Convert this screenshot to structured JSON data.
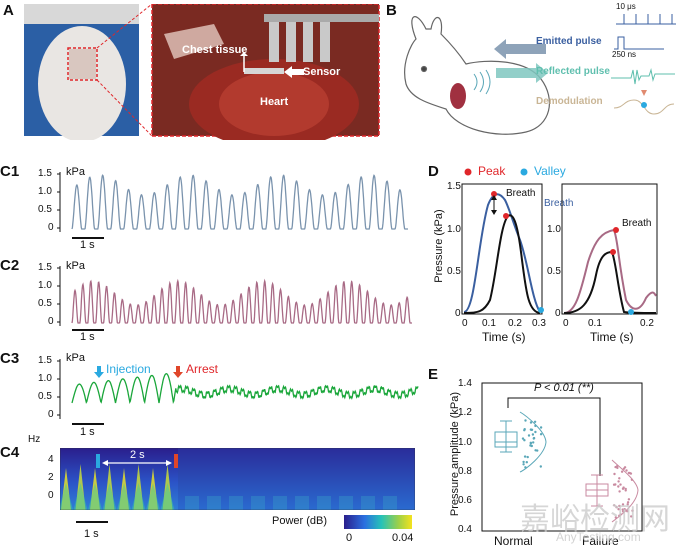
{
  "panels": {
    "A": {
      "label": "A",
      "chest_tissue": "Chest tissue",
      "sensor": "Sensor",
      "heart": "Heart"
    },
    "B": {
      "label": "B",
      "emitted": "Emitted pulse",
      "reflected": "Reflected pulse",
      "demodulation": "Demodulation",
      "t1": "10 μs",
      "t2": "250 ns"
    },
    "C1": {
      "label": "C1",
      "unit": "kPa",
      "yticks": [
        "1.5",
        "1.0",
        "0.5",
        "0"
      ],
      "scale": "1 s"
    },
    "C2": {
      "label": "C2",
      "unit": "kPa",
      "yticks": [
        "1.5",
        "1.0",
        "0.5",
        "0"
      ],
      "scale": "1 s"
    },
    "C3": {
      "label": "C3",
      "unit": "kPa",
      "yticks": [
        "1.5",
        "1.0",
        "0.5",
        "0"
      ],
      "scale": "1 s",
      "injection": "Injection",
      "arrest": "Arrest"
    },
    "C4": {
      "label": "C4",
      "unit": "Hz",
      "yticks": [
        "4",
        "2",
        "0"
      ],
      "scale": "1 s",
      "interval": "2 s",
      "colorbar_label": "Power (dB)",
      "cb_min": "0",
      "cb_max": "0.04"
    },
    "D": {
      "label": "D",
      "legend_peak": "Peak",
      "legend_valley": "Valley",
      "ylabel": "Pressure (kPa)",
      "xlabel": "Time (s)",
      "breath": "Breath",
      "breath2": "Breath",
      "breath3": "Breath",
      "yticks": [
        "1.5",
        "1.0",
        "0.5",
        "0"
      ],
      "xticks_left": [
        "0",
        "0.1",
        "0.2",
        "0.3"
      ],
      "xticks_right": [
        "0",
        "0.1",
        "0.2"
      ]
    },
    "E": {
      "label": "E",
      "ylabel": "Pressure amplitude (kPa)",
      "pvalue": "P < 0.01 (**)",
      "yticks": [
        "1.4",
        "1.2",
        "1.0",
        "0.8",
        "0.6",
        "0.4"
      ],
      "xcats": [
        "Normal",
        "Failure"
      ]
    }
  },
  "watermark": {
    "main": "嘉峪检测网",
    "sub": "AnyTesting.com"
  },
  "colors": {
    "c1": "#7a93ad",
    "c2": "#a86a85",
    "c3": "#1aa63a",
    "peak": "#e0262a",
    "valley": "#2aa9e0",
    "blue": "#3a5fa0",
    "normal": "#5aa7b8",
    "failure": "#c98aa0"
  }
}
